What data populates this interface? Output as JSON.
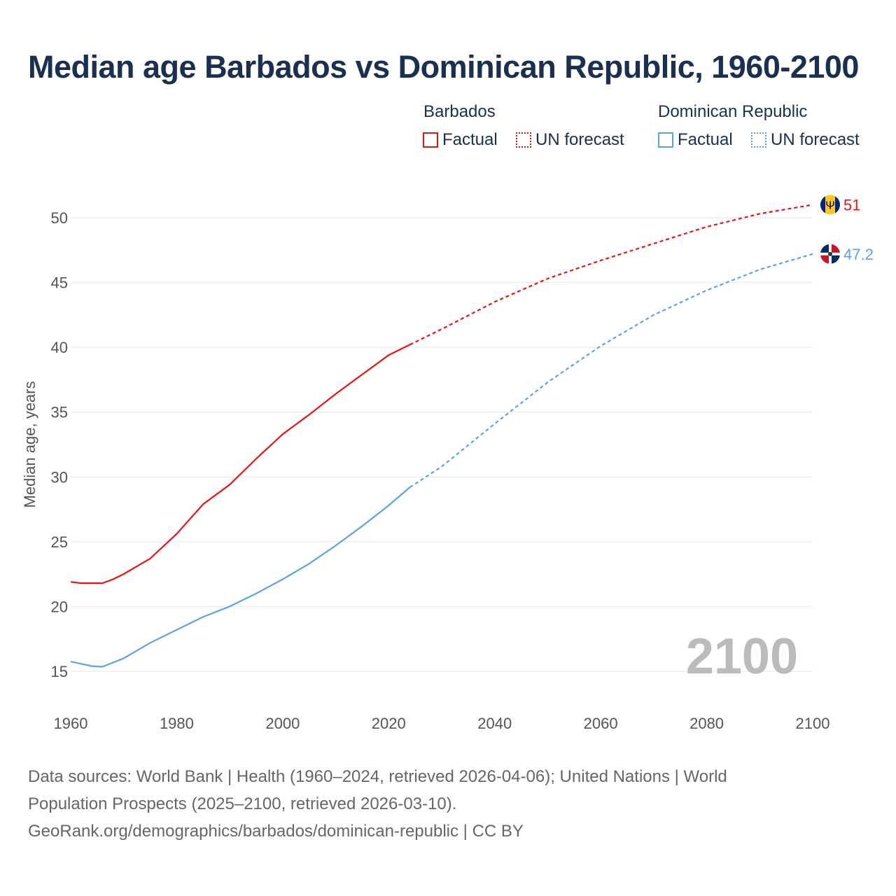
{
  "chart_data": {
    "type": "line",
    "title": "Median age Barbados vs Dominican Republic, 1960-2100",
    "ylabel": "Median age, years",
    "xlabel": "",
    "xlim": [
      1960,
      2100
    ],
    "ylim": [
      12.5,
      52
    ],
    "xticks": [
      1960,
      1980,
      2000,
      2020,
      2040,
      2060,
      2080,
      2100
    ],
    "yticks": [
      15,
      20,
      25,
      30,
      35,
      40,
      45,
      50
    ],
    "watermark_year": "2100",
    "forecast_start": 2024,
    "legend": {
      "groups": [
        {
          "name": "Barbados",
          "factual": "Factual",
          "forecast": "UN forecast",
          "color": "#ee1111"
        },
        {
          "name": "Dominican Republic",
          "factual": "Factual",
          "forecast": "UN forecast",
          "color": "#5ba3e8"
        }
      ]
    },
    "series": [
      {
        "name": "Barbados",
        "color": "#ee1111",
        "end_label": "51",
        "x": [
          1960,
          1962,
          1966,
          1968,
          1970,
          1975,
          1980,
          1985,
          1990,
          1995,
          2000,
          2005,
          2010,
          2015,
          2020,
          2024,
          2030,
          2040,
          2050,
          2060,
          2070,
          2080,
          2090,
          2100
        ],
        "y": [
          21.9,
          21.8,
          21.8,
          22.1,
          22.5,
          23.7,
          25.6,
          27.9,
          29.4,
          31.4,
          33.3,
          34.8,
          36.4,
          37.9,
          39.4,
          40.2,
          41.4,
          43.5,
          45.3,
          46.7,
          48.0,
          49.3,
          50.3,
          51.0
        ]
      },
      {
        "name": "Dominican Republic",
        "color": "#5ba3e8",
        "end_label": "47.2",
        "x": [
          1960,
          1964,
          1966,
          1970,
          1975,
          1980,
          1985,
          1990,
          1995,
          2000,
          2005,
          2010,
          2015,
          2020,
          2024,
          2030,
          2040,
          2050,
          2060,
          2070,
          2080,
          2090,
          2100
        ],
        "y": [
          15.75,
          15.4,
          15.35,
          16.0,
          17.2,
          18.2,
          19.2,
          20.0,
          21.0,
          22.1,
          23.3,
          24.7,
          26.2,
          27.8,
          29.2,
          30.8,
          34.1,
          37.3,
          40.1,
          42.5,
          44.4,
          46.0,
          47.2
        ]
      }
    ]
  },
  "footer": {
    "line1": "Data sources: World Bank | Health (1960–2024, retrieved 2026-04-06); United Nations | World",
    "line2": "Population Prospects (2025–2100, retrieved 2026-03-10).",
    "line3": "GeoRank.org/demographics/barbados/dominican-republic | CC BY"
  }
}
